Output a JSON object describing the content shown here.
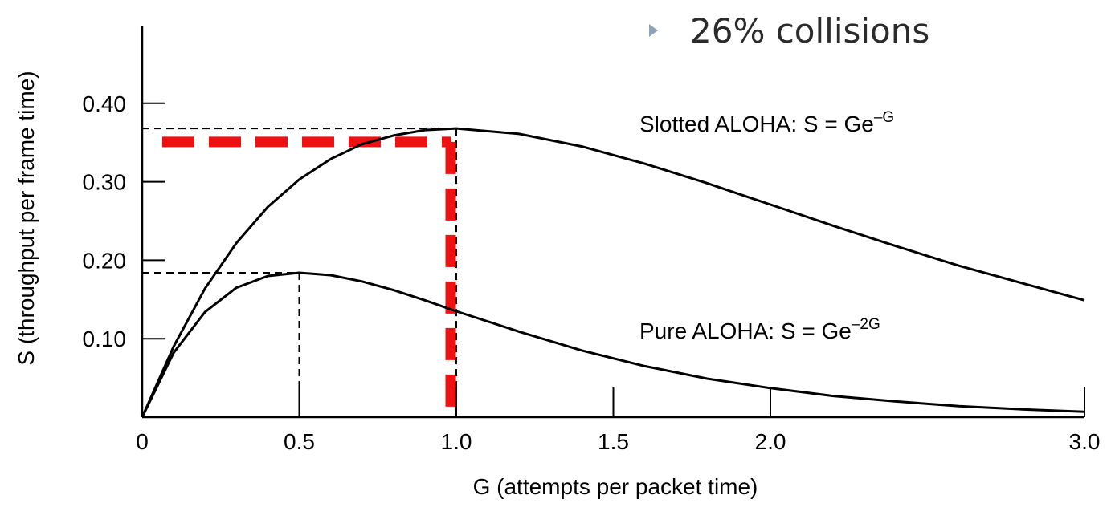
{
  "bullet": {
    "text": "26% collisions",
    "icon": "triangle-bullet-icon",
    "icon_color": "#8ea2b8",
    "text_color": "#2b2b2b"
  },
  "chart_data": {
    "type": "line",
    "xlabel": "G (attempts per packet time)",
    "ylabel": "S (throughput per frame time)",
    "xlim": [
      0,
      3.0
    ],
    "ylim": [
      0,
      0.4
    ],
    "x_ticks": [
      "0",
      "0.5",
      "1.0",
      "1.5",
      "2.0",
      "3.0"
    ],
    "x_tick_values": [
      0,
      0.5,
      1.0,
      1.5,
      2.0,
      3.0
    ],
    "y_ticks": [
      "0.10",
      "0.20",
      "0.30",
      "0.40"
    ],
    "y_tick_values": [
      0.1,
      0.2,
      0.3,
      0.4
    ],
    "grid": false,
    "series": [
      {
        "key": "slotted",
        "formula_prefix": "Slotted ALOHA: S = Ge",
        "formula_exp": "–G",
        "color": "#000000",
        "x": [
          0,
          0.1,
          0.2,
          0.3,
          0.4,
          0.5,
          0.6,
          0.7,
          0.8,
          0.9,
          1.0,
          1.2,
          1.4,
          1.6,
          1.8,
          2.0,
          2.2,
          2.4,
          2.6,
          2.8,
          3.0
        ],
        "y": [
          0,
          0.09,
          0.164,
          0.222,
          0.268,
          0.303,
          0.329,
          0.348,
          0.359,
          0.366,
          0.368,
          0.361,
          0.345,
          0.323,
          0.298,
          0.271,
          0.244,
          0.218,
          0.193,
          0.171,
          0.149
        ]
      },
      {
        "key": "pure",
        "formula_prefix": "Pure ALOHA: S = Ge",
        "formula_exp": "–2G",
        "color": "#000000",
        "x": [
          0,
          0.1,
          0.2,
          0.3,
          0.4,
          0.5,
          0.6,
          0.7,
          0.8,
          0.9,
          1.0,
          1.2,
          1.4,
          1.6,
          1.8,
          2.0,
          2.2,
          2.4,
          2.6,
          2.8,
          3.0
        ],
        "y": [
          0,
          0.082,
          0.134,
          0.165,
          0.18,
          0.184,
          0.181,
          0.173,
          0.162,
          0.149,
          0.135,
          0.109,
          0.085,
          0.065,
          0.049,
          0.037,
          0.027,
          0.02,
          0.014,
          0.01,
          0.007
        ]
      }
    ],
    "reference_lines": [
      {
        "key": "slotted-max",
        "x": 1.0,
        "y": 0.368,
        "style": "dashed",
        "color": "#000000"
      },
      {
        "key": "pure-max",
        "x": 0.5,
        "y": 0.184,
        "style": "dashed",
        "color": "#000000"
      }
    ],
    "highlight": {
      "key": "slotted-max-highlight",
      "x": 1.0,
      "y": 0.36,
      "style": "dashed",
      "color": "#ee1111"
    }
  }
}
